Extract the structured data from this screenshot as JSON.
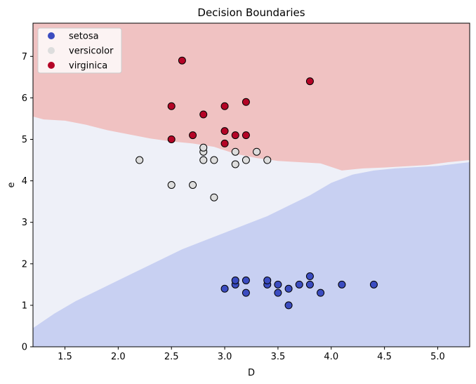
{
  "chart_data": {
    "type": "scatter",
    "title": "Decision Boundaries",
    "xlabel": "D",
    "ylabel": "e",
    "xlim": [
      1.2,
      5.3
    ],
    "ylim": [
      0,
      7.8
    ],
    "xticks": [
      1.5,
      2.0,
      2.5,
      3.0,
      3.5,
      4.0,
      4.5,
      5.0
    ],
    "yticks": [
      0,
      1,
      2,
      3,
      4,
      5,
      6,
      7
    ],
    "grid": false,
    "legend_position": "top-left",
    "regions": [
      {
        "class": "virginica",
        "color": "#f0c2c2",
        "boundary_below": [
          [
            1.2,
            5.55
          ],
          [
            1.3,
            5.48
          ],
          [
            1.5,
            5.45
          ],
          [
            1.7,
            5.35
          ],
          [
            1.9,
            5.22
          ],
          [
            2.1,
            5.12
          ],
          [
            2.3,
            5.02
          ],
          [
            2.5,
            4.95
          ],
          [
            2.7,
            4.9
          ],
          [
            2.9,
            4.82
          ],
          [
            3.1,
            4.65
          ],
          [
            3.3,
            4.55
          ],
          [
            3.5,
            4.48
          ],
          [
            3.7,
            4.45
          ],
          [
            3.9,
            4.42
          ],
          [
            4.1,
            4.25
          ],
          [
            4.3,
            4.3
          ],
          [
            4.5,
            4.32
          ],
          [
            4.7,
            4.35
          ],
          [
            4.9,
            4.38
          ],
          [
            5.1,
            4.45
          ],
          [
            5.3,
            4.5
          ]
        ]
      },
      {
        "class": "versicolor",
        "color": "#eef0f8"
      },
      {
        "class": "setosa",
        "color": "#c8d0f2",
        "boundary_above": [
          [
            1.2,
            0.45
          ],
          [
            1.4,
            0.8
          ],
          [
            1.6,
            1.1
          ],
          [
            1.8,
            1.35
          ],
          [
            2.0,
            1.6
          ],
          [
            2.2,
            1.85
          ],
          [
            2.4,
            2.1
          ],
          [
            2.6,
            2.35
          ],
          [
            2.8,
            2.55
          ],
          [
            3.0,
            2.75
          ],
          [
            3.2,
            2.95
          ],
          [
            3.4,
            3.15
          ],
          [
            3.6,
            3.4
          ],
          [
            3.8,
            3.65
          ],
          [
            4.0,
            3.95
          ],
          [
            4.2,
            4.15
          ],
          [
            4.4,
            4.25
          ],
          [
            4.6,
            4.3
          ],
          [
            4.8,
            4.33
          ],
          [
            5.0,
            4.36
          ],
          [
            5.2,
            4.42
          ],
          [
            5.3,
            4.45
          ]
        ]
      }
    ],
    "series": [
      {
        "name": "setosa",
        "color": "#3b4cc0",
        "points": [
          [
            3.0,
            1.4
          ],
          [
            3.1,
            1.5
          ],
          [
            3.1,
            1.6
          ],
          [
            3.2,
            1.6
          ],
          [
            3.2,
            1.3
          ],
          [
            3.4,
            1.5
          ],
          [
            3.4,
            1.6
          ],
          [
            3.5,
            1.3
          ],
          [
            3.5,
            1.5
          ],
          [
            3.6,
            1.4
          ],
          [
            3.6,
            1.0
          ],
          [
            3.7,
            1.5
          ],
          [
            3.8,
            1.5
          ],
          [
            3.8,
            1.7
          ],
          [
            3.9,
            1.3
          ],
          [
            4.1,
            1.5
          ],
          [
            4.4,
            1.5
          ]
        ]
      },
      {
        "name": "versicolor",
        "color": "#dddddd",
        "points": [
          [
            2.2,
            4.5
          ],
          [
            2.5,
            3.9
          ],
          [
            2.7,
            3.9
          ],
          [
            2.8,
            4.5
          ],
          [
            2.8,
            4.7
          ],
          [
            2.8,
            4.8
          ],
          [
            2.9,
            4.5
          ],
          [
            2.9,
            3.6
          ],
          [
            3.1,
            4.7
          ],
          [
            3.1,
            4.4
          ],
          [
            3.2,
            4.5
          ],
          [
            3.3,
            4.7
          ],
          [
            3.4,
            4.5
          ]
        ]
      },
      {
        "name": "virginica",
        "color": "#b40426",
        "points": [
          [
            2.5,
            5.8
          ],
          [
            2.5,
            5.0
          ],
          [
            2.6,
            6.9
          ],
          [
            2.7,
            5.1
          ],
          [
            2.8,
            5.6
          ],
          [
            3.0,
            5.8
          ],
          [
            3.0,
            5.2
          ],
          [
            3.0,
            4.9
          ],
          [
            3.1,
            5.1
          ],
          [
            3.2,
            5.9
          ],
          [
            3.2,
            5.1
          ],
          [
            3.8,
            6.4
          ]
        ]
      }
    ]
  }
}
